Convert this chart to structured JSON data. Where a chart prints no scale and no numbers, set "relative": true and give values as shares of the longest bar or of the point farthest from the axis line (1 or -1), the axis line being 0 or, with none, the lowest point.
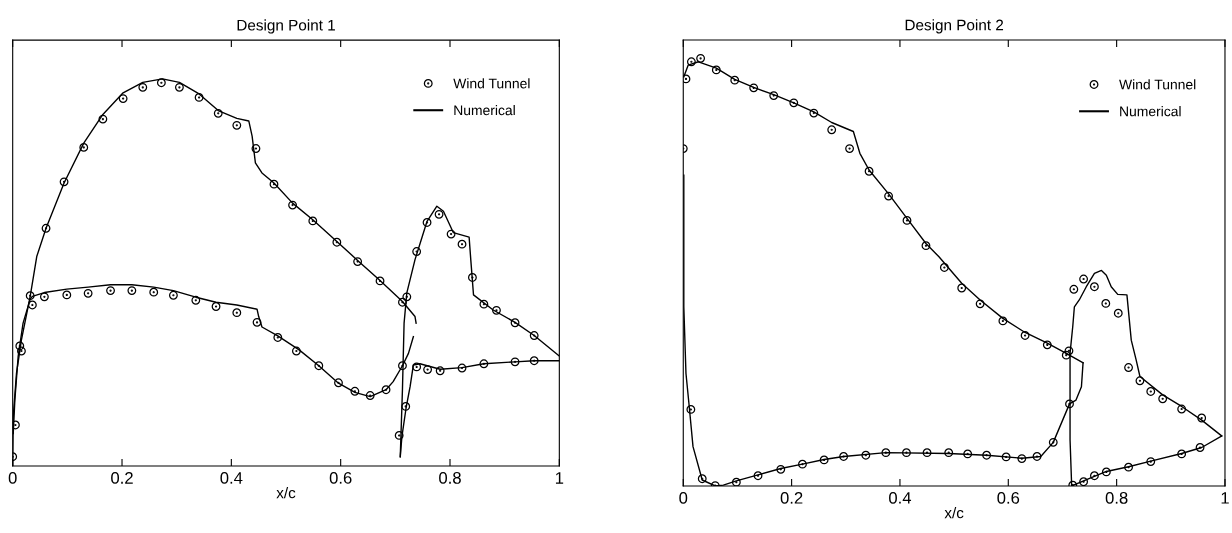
{
  "chart_data": [
    {
      "type": "scatter",
      "title": "Design Point 1",
      "xlabel": "x/c",
      "relative": true,
      "xlim": [
        0,
        1
      ],
      "xticks": [
        0,
        0.2,
        0.4,
        0.6,
        0.8,
        1
      ],
      "tick_labels": "x",
      "legend": "top right",
      "marker": "circle",
      "series": [
        {
          "name": "Wind Tunnel",
          "color": "#000000",
          "x": [
            0,
            0.005,
            0.013,
            0.032,
            0.061,
            0.094,
            0.13,
            0.165,
            0.202,
            0.238,
            0.272,
            0.305,
            0.341,
            0.376,
            0.41,
            0.445,
            0.478,
            0.512,
            0.549,
            0.593,
            0.631,
            0.672,
            0.713,
            0.721,
            0.739,
            0.758,
            0.78,
            0.802,
            0.822,
            0.841,
            0.862,
            0.885,
            0.919,
            0.954,
            0.016,
            0.036,
            0.058,
            0.099,
            0.138,
            0.179,
            0.218,
            0.258,
            0.294,
            0.335,
            0.372,
            0.41,
            0.447,
            0.485,
            0.519,
            0.56,
            0.596,
            0.626,
            0.654,
            0.683,
            0.713,
            0.707,
            0.719,
            0.739,
            0.759,
            0.782,
            0.822,
            0.862,
            0.919,
            0.954
          ],
          "values": [
            0.024,
            0.106,
            0.31,
            0.44,
            0.614,
            0.734,
            0.823,
            0.896,
            0.949,
            0.978,
            0.99,
            0.978,
            0.952,
            0.911,
            0.88,
            0.82,
            0.728,
            0.674,
            0.633,
            0.578,
            0.528,
            0.478,
            0.423,
            0.437,
            0.554,
            0.629,
            0.65,
            0.599,
            0.573,
            0.487,
            0.418,
            0.402,
            0.37,
            0.337,
            0.297,
            0.416,
            0.437,
            0.442,
            0.446,
            0.453,
            0.453,
            0.449,
            0.441,
            0.428,
            0.412,
            0.396,
            0.371,
            0.332,
            0.297,
            0.259,
            0.215,
            0.193,
            0.182,
            0.197,
            0.259,
            0.079,
            0.154,
            0.256,
            0.249,
            0.246,
            0.253,
            0.264,
            0.269,
            0.272
          ]
        },
        {
          "name": "Numerical",
          "type": "line",
          "marker": "none",
          "line_style": "solid",
          "color": "#000000",
          "x": [
            0,
            0.001,
            0.007,
            0.016,
            0.032,
            0.044,
            0.061,
            0.094,
            0.13,
            0.165,
            0.202,
            0.238,
            0.274,
            0.305,
            0.341,
            0.376,
            0.41,
            0.432,
            0.438,
            0.444,
            0.456,
            0.478,
            0.512,
            0.549,
            0.593,
            0.631,
            0.672,
            0.713,
            0.736,
            0.738
          ],
          "values": [
            0,
            0.128,
            0.24,
            0.326,
            0.438,
            0.541,
            0.614,
            0.731,
            0.834,
            0.908,
            0.964,
            0.991,
            1.0,
            0.991,
            0.961,
            0.918,
            0.898,
            0.891,
            0.852,
            0.783,
            0.757,
            0.731,
            0.679,
            0.636,
            0.58,
            0.531,
            0.479,
            0.425,
            0.386,
            0.369
          ]
        },
        {
          "type": "line",
          "marker": "none",
          "line_style": "solid",
          "color": "#000000",
          "x": [
            0.001,
            0.004,
            0.01,
            0.019,
            0.032,
            0.036,
            0.058,
            0.099,
            0.138,
            0.179,
            0.218,
            0.258,
            0.294,
            0.335,
            0.372,
            0.41,
            0.447,
            0.45,
            0.456,
            0.485,
            0.524,
            0.56,
            0.596,
            0.626,
            0.654,
            0.683,
            0.696,
            0.713,
            0.724,
            0.733
          ],
          "values": [
            0.084,
            0.171,
            0.283,
            0.369,
            0.431,
            0.438,
            0.448,
            0.457,
            0.462,
            0.468,
            0.468,
            0.462,
            0.453,
            0.436,
            0.423,
            0.416,
            0.405,
            0.386,
            0.359,
            0.336,
            0.3,
            0.259,
            0.214,
            0.19,
            0.179,
            0.197,
            0.218,
            0.259,
            0.291,
            0.334
          ]
        },
        {
          "type": "line",
          "marker": "none",
          "line_style": "solid",
          "color": "#000000",
          "x": [
            0.709,
            0.713,
            0.716,
            0.721,
            0.736,
            0.758,
            0.776,
            0.788,
            0.806,
            0.835,
            0.838,
            0.843,
            0.879,
            0.919,
            0.954,
            1.0
          ],
          "values": [
            0.024,
            0.197,
            0.369,
            0.447,
            0.533,
            0.632,
            0.671,
            0.658,
            0.603,
            0.591,
            0.533,
            0.442,
            0.403,
            0.371,
            0.337,
            0.284
          ]
        },
        {
          "type": "line",
          "marker": "none",
          "line_style": "solid",
          "color": "#000000",
          "x": [
            0.709,
            0.712,
            0.72,
            0.727,
            0.733,
            0.745,
            0.782,
            0.822,
            0.862,
            0.919,
            0.954,
            1.0
          ],
          "values": [
            0.024,
            0.076,
            0.153,
            0.205,
            0.261,
            0.264,
            0.25,
            0.254,
            0.264,
            0.269,
            0.272,
            0.272
          ]
        }
      ]
    },
    {
      "type": "scatter",
      "title": "Design Point 2",
      "xlabel": "x/c",
      "relative": true,
      "xlim": [
        0,
        1
      ],
      "xticks": [
        0,
        0.2,
        0.4,
        0.6,
        0.8,
        1
      ],
      "tick_labels": "x",
      "legend": "top right",
      "marker": "circle",
      "series": [
        {
          "name": "Wind Tunnel",
          "color": "#000000",
          "x": [
            0,
            0.005,
            0.015,
            0.032,
            0.061,
            0.095,
            0.13,
            0.167,
            0.204,
            0.241,
            0.274,
            0.307,
            0.343,
            0.379,
            0.413,
            0.448,
            0.482,
            0.514,
            0.548,
            0.59,
            0.631,
            0.672,
            0.707,
            0.712,
            0.721,
            0.739,
            0.759,
            0.78,
            0.803,
            0.822,
            0.843,
            0.863,
            0.885,
            0.92,
            0.957,
            0.014,
            0.035,
            0.059,
            0.098,
            0.138,
            0.18,
            0.22,
            0.26,
            0.296,
            0.337,
            0.374,
            0.412,
            0.45,
            0.49,
            0.525,
            0.56,
            0.596,
            0.625,
            0.653,
            0.683,
            0.713,
            0.719,
            0.739,
            0.759,
            0.781,
            0.822,
            0.863,
            0.92,
            0.954
          ],
          "values": [
            0.789,
            0.952,
            0.992,
            1.0,
            0.973,
            0.949,
            0.931,
            0.913,
            0.896,
            0.872,
            0.833,
            0.789,
            0.736,
            0.678,
            0.621,
            0.562,
            0.511,
            0.463,
            0.426,
            0.386,
            0.352,
            0.33,
            0.306,
            0.316,
            0.46,
            0.484,
            0.466,
            0.427,
            0.404,
            0.277,
            0.246,
            0.221,
            0.204,
            0.18,
            0.159,
            0.179,
            0.017,
            0.001,
            0.009,
            0.024,
            0.039,
            0.051,
            0.061,
            0.069,
            0.072,
            0.078,
            0.078,
            0.078,
            0.078,
            0.075,
            0.072,
            0.068,
            0.064,
            0.069,
            0.102,
            0.192,
            0.002,
            0.01,
            0.024,
            0.033,
            0.044,
            0.057,
            0.075,
            0.09
          ]
        },
        {
          "name": "Numerical",
          "type": "line",
          "marker": "none",
          "line_style": "solid",
          "color": "#000000",
          "x": [
            0.001,
            0.009,
            0.028,
            0.061,
            0.095,
            0.13,
            0.167,
            0.204,
            0.241,
            0.274,
            0.314,
            0.326,
            0.343,
            0.379,
            0.413,
            0.448,
            0.472,
            0.514,
            0.548,
            0.59,
            0.631,
            0.672,
            0.707,
            0.738
          ],
          "values": [
            0.957,
            0.984,
            0.992,
            0.977,
            0.951,
            0.932,
            0.915,
            0.896,
            0.875,
            0.85,
            0.829,
            0.778,
            0.739,
            0.683,
            0.626,
            0.567,
            0.536,
            0.474,
            0.435,
            0.392,
            0.359,
            0.334,
            0.31,
            0.288
          ]
        },
        {
          "type": "line",
          "marker": "none",
          "line_style": "solid",
          "color": "#000000",
          "x": [
            0.001,
            0.001,
            0.005,
            0.011,
            0.018,
            0.035,
            0.059,
            0.074,
            0.098,
            0.138,
            0.18,
            0.22,
            0.26,
            0.296,
            0.374,
            0.49,
            0.56,
            0.625,
            0.66,
            0.683,
            0.713,
            0.725,
            0.735,
            0.738
          ],
          "values": [
            0.727,
            0.419,
            0.263,
            0.186,
            0.092,
            0.014,
            0,
            0.002,
            0.012,
            0.026,
            0.041,
            0.051,
            0.062,
            0.069,
            0.078,
            0.076,
            0.072,
            0.065,
            0.069,
            0.102,
            0.192,
            0.201,
            0.232,
            0.288
          ]
        },
        {
          "type": "line",
          "marker": "none",
          "line_style": "solid",
          "color": "#000000",
          "x": [
            0.717,
            0.739,
            0.781,
            0.822,
            0.863,
            0.92,
            0.957,
            0.994
          ],
          "values": [
            0,
            0.012,
            0.034,
            0.045,
            0.058,
            0.076,
            0.09,
            0.117
          ]
        },
        {
          "type": "line",
          "marker": "none",
          "line_style": "solid",
          "color": "#000000",
          "x": [
            0.717,
            0.714,
            0.714,
            0.719,
            0.722,
            0.731,
            0.744,
            0.759,
            0.772,
            0.781,
            0.79,
            0.802,
            0.819,
            0.827,
            0.836,
            0.843,
            0.885,
            0.92,
            0.957,
            0.994
          ],
          "values": [
            0,
            0.108,
            0.31,
            0.373,
            0.419,
            0.435,
            0.466,
            0.497,
            0.504,
            0.493,
            0.466,
            0.448,
            0.447,
            0.341,
            0.295,
            0.256,
            0.213,
            0.186,
            0.154,
            0.117
          ]
        }
      ]
    }
  ]
}
